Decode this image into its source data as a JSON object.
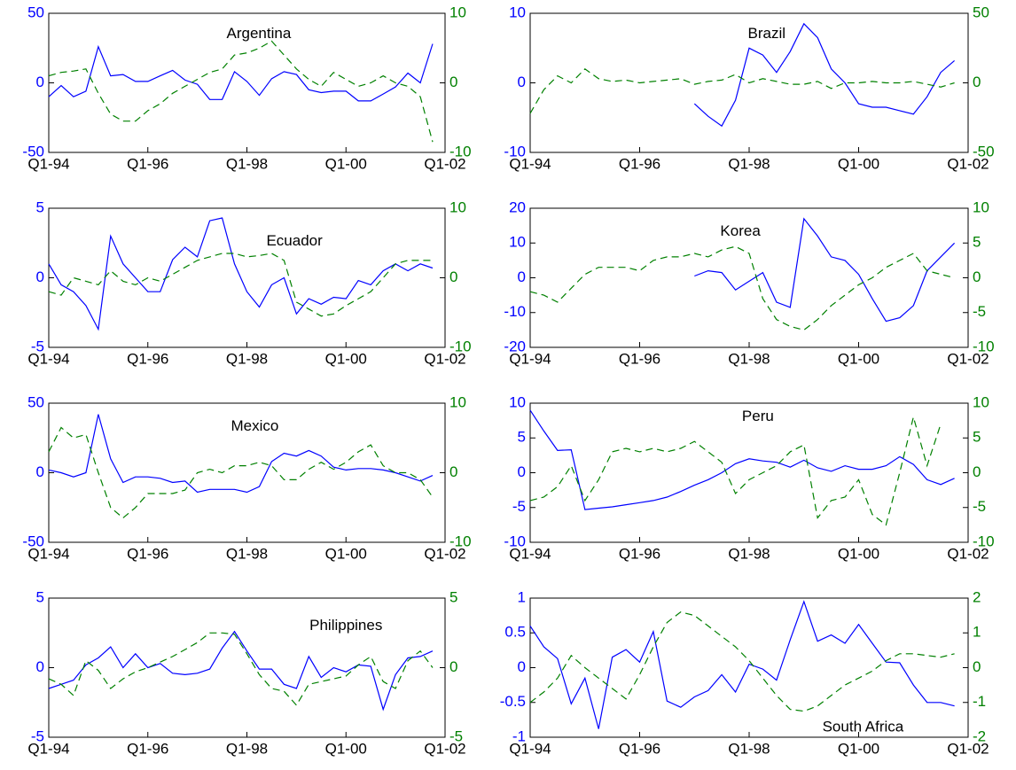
{
  "chart_data": [
    {
      "type": "line",
      "title": "Argentina",
      "categories": [
        "Q1-94",
        null,
        null,
        null,
        null,
        null,
        null,
        null,
        "Q1-96",
        null,
        null,
        null,
        null,
        null,
        null,
        null,
        "Q1-98",
        null,
        null,
        null,
        null,
        null,
        null,
        null,
        "Q1-00",
        null,
        null,
        null,
        null,
        null,
        null,
        null,
        "Q1-02"
      ],
      "ylim": [
        -50,
        50
      ],
      "yticks": [
        -50,
        0,
        50
      ],
      "y2lim": [
        -10,
        10
      ],
      "y2ticks": [
        -10,
        0,
        10
      ],
      "series": [
        {
          "color": "#0000ff",
          "style": "solid",
          "values": [
            -10,
            -2,
            -10,
            -6,
            26,
            5,
            6,
            1,
            1,
            5,
            9,
            2,
            -1,
            -12,
            -12,
            8,
            1,
            -9,
            3,
            8,
            6,
            -5,
            -7,
            -6,
            -6,
            -13,
            -13,
            -8,
            -3,
            7,
            0,
            28,
            null
          ]
        },
        {
          "color": "#008000",
          "style": "dashed",
          "axis": "y2",
          "values": [
            1,
            1.5,
            1.7,
            2,
            -1.5,
            -4.5,
            -5.5,
            -5.5,
            -4,
            -3,
            -1.5,
            -0.5,
            0.5,
            1.5,
            2,
            4,
            4.3,
            5,
            6,
            4,
            2,
            0.5,
            -0.5,
            1.5,
            0.5,
            -0.5,
            0,
            1,
            0,
            -0.5,
            -2,
            -8.5,
            null
          ]
        }
      ]
    },
    {
      "type": "line",
      "title": "Brazil",
      "categories": [
        "Q1-94",
        null,
        null,
        null,
        null,
        null,
        null,
        null,
        "Q1-96",
        null,
        null,
        null,
        null,
        null,
        null,
        null,
        "Q1-98",
        null,
        null,
        null,
        null,
        null,
        null,
        null,
        "Q1-00",
        null,
        null,
        null,
        null,
        null,
        null,
        null,
        "Q1-02"
      ],
      "ylim": [
        -10,
        10
      ],
      "yticks": [
        -10,
        0,
        10
      ],
      "y2lim": [
        -50,
        50
      ],
      "y2ticks": [
        -50,
        0,
        50
      ],
      "series": [
        {
          "color": "#0000ff",
          "style": "solid",
          "values": [
            null,
            null,
            null,
            null,
            null,
            null,
            null,
            null,
            null,
            null,
            null,
            null,
            -3,
            -4.8,
            -6.2,
            -2.5,
            5,
            4,
            1.5,
            4.5,
            8.5,
            6.5,
            2,
            0,
            -3,
            -3.5,
            -3.5,
            -4,
            -4.5,
            -2,
            1.5,
            3.2,
            null
          ]
        },
        {
          "color": "#008000",
          "style": "dashed",
          "axis": "y2",
          "values": [
            -22,
            -5,
            5,
            0,
            10,
            3,
            1,
            2,
            0,
            1,
            2,
            3,
            -1,
            1,
            2,
            6,
            0,
            3,
            1,
            -1,
            -1,
            1,
            -4,
            0,
            0,
            1,
            0,
            0,
            1,
            -1,
            -3,
            0,
            null
          ]
        }
      ]
    },
    {
      "type": "line",
      "title": "Ecuador",
      "categories": [
        "Q1-94",
        null,
        null,
        null,
        null,
        null,
        null,
        null,
        "Q1-96",
        null,
        null,
        null,
        null,
        null,
        null,
        null,
        "Q1-98",
        null,
        null,
        null,
        null,
        null,
        null,
        null,
        "Q1-00",
        null,
        null,
        null,
        null,
        null,
        null,
        null,
        "Q1-02"
      ],
      "ylim": [
        -5,
        5
      ],
      "yticks": [
        -5,
        0,
        5
      ],
      "y2lim": [
        -10,
        10
      ],
      "y2ticks": [
        -10,
        0,
        10
      ],
      "series": [
        {
          "color": "#0000ff",
          "style": "solid",
          "values": [
            1,
            -0.5,
            -1,
            -2,
            -3.7,
            3,
            1,
            0,
            -1,
            -1,
            1.3,
            2.2,
            1.5,
            4.1,
            4.3,
            1,
            -1,
            -2.1,
            -0.5,
            0,
            -2.6,
            -1.5,
            -1.9,
            -1.4,
            -1.5,
            -0.2,
            -0.5,
            0.5,
            1,
            0.5,
            1,
            0.7,
            null
          ]
        },
        {
          "color": "#008000",
          "style": "dashed",
          "axis": "y2",
          "values": [
            -2,
            -2.5,
            0,
            -0.5,
            -1,
            1,
            -0.5,
            -1,
            0,
            -0.5,
            0.5,
            1.5,
            2.5,
            3,
            3.5,
            3.5,
            3,
            3.2,
            3.5,
            2.5,
            -3.5,
            -4.5,
            -5.5,
            -5.2,
            -4,
            -3,
            -2,
            0,
            2,
            2.5,
            2.5,
            2.5,
            null
          ]
        }
      ]
    },
    {
      "type": "line",
      "title": "Korea",
      "categories": [
        "Q1-94",
        null,
        null,
        null,
        null,
        null,
        null,
        null,
        "Q1-96",
        null,
        null,
        null,
        null,
        null,
        null,
        null,
        "Q1-98",
        null,
        null,
        null,
        null,
        null,
        null,
        null,
        "Q1-00",
        null,
        null,
        null,
        null,
        null,
        null,
        null,
        "Q1-02"
      ],
      "ylim": [
        -20,
        20
      ],
      "yticks": [
        -20,
        -10,
        0,
        10,
        20
      ],
      "y2lim": [
        -10,
        10
      ],
      "y2ticks": [
        -10,
        -5,
        0,
        5,
        10
      ],
      "series": [
        {
          "color": "#0000ff",
          "style": "solid",
          "values": [
            null,
            null,
            null,
            null,
            null,
            null,
            null,
            null,
            null,
            null,
            null,
            null,
            0.5,
            2,
            1.5,
            -3.5,
            -1,
            1.5,
            -7,
            -8.5,
            17,
            12,
            6,
            5,
            1,
            -6,
            -12.5,
            -11.5,
            -8,
            2,
            6,
            10,
            null
          ]
        },
        {
          "color": "#008000",
          "style": "dashed",
          "axis": "y2",
          "values": [
            -2,
            -2.5,
            -3.5,
            -1.5,
            0.5,
            1.5,
            1.5,
            1.5,
            1,
            2.5,
            3,
            3,
            3.5,
            3,
            4,
            4.5,
            3.5,
            -3,
            -6,
            -7,
            -7.5,
            -6,
            -4,
            -2.5,
            -1,
            0,
            1.5,
            2.5,
            3.5,
            1,
            0.5,
            0,
            null
          ]
        }
      ]
    },
    {
      "type": "line",
      "title": "Mexico",
      "categories": [
        "Q1-94",
        null,
        null,
        null,
        null,
        null,
        null,
        null,
        "Q1-96",
        null,
        null,
        null,
        null,
        null,
        null,
        null,
        "Q1-98",
        null,
        null,
        null,
        null,
        null,
        null,
        null,
        "Q1-00",
        null,
        null,
        null,
        null,
        null,
        null,
        null,
        "Q1-02"
      ],
      "ylim": [
        -50,
        50
      ],
      "yticks": [
        -50,
        0,
        50
      ],
      "y2lim": [
        -10,
        10
      ],
      "y2ticks": [
        -10,
        0,
        10
      ],
      "series": [
        {
          "color": "#0000ff",
          "style": "solid",
          "values": [
            2,
            0,
            -3,
            0,
            42,
            10,
            -7,
            -3,
            -3,
            -4,
            -7,
            -6,
            -14,
            -12,
            -12,
            -12,
            -14,
            -10,
            8,
            14,
            12,
            16,
            12,
            4,
            2,
            3,
            3,
            2,
            0,
            -3,
            -6,
            -2,
            null
          ]
        },
        {
          "color": "#008000",
          "style": "dashed",
          "axis": "y2",
          "values": [
            3,
            6.5,
            5,
            5.5,
            0,
            -5,
            -6.5,
            -5,
            -3,
            -3,
            -3,
            -2.5,
            0,
            0.5,
            0,
            1,
            1,
            1.5,
            1,
            -1,
            -1,
            0.5,
            1.5,
            0.5,
            1.5,
            3,
            4,
            1,
            0,
            0,
            -1,
            -3.5,
            null
          ]
        }
      ]
    },
    {
      "type": "line",
      "title": "Peru",
      "categories": [
        "Q1-94",
        null,
        null,
        null,
        null,
        null,
        null,
        null,
        "Q1-96",
        null,
        null,
        null,
        null,
        null,
        null,
        null,
        "Q1-98",
        null,
        null,
        null,
        null,
        null,
        null,
        null,
        "Q1-00",
        null,
        null,
        null,
        null,
        null,
        null,
        null,
        "Q1-02"
      ],
      "ylim": [
        -10,
        10
      ],
      "yticks": [
        -10,
        -5,
        0,
        5,
        10
      ],
      "y2lim": [
        -10,
        10
      ],
      "y2ticks": [
        -10,
        -5,
        0,
        5,
        10
      ],
      "series": [
        {
          "color": "#0000ff",
          "style": "solid",
          "values": [
            9,
            6,
            3.2,
            3.3,
            -5.3,
            -5.1,
            -4.9,
            -4.6,
            -4.3,
            -4,
            -3.5,
            -2.7,
            -1.8,
            -1,
            0,
            1.3,
            2,
            1.7,
            1.5,
            0.8,
            1.8,
            0.7,
            0.2,
            1,
            0.5,
            0.5,
            1,
            2.3,
            1.2,
            -1,
            -1.7,
            -0.8,
            null
          ]
        },
        {
          "color": "#008000",
          "style": "dashed",
          "axis": "y2",
          "values": [
            -4,
            -3.5,
            -2,
            1,
            -4,
            -1,
            3,
            3.5,
            3,
            3.5,
            3,
            3.5,
            4.5,
            3,
            1.5,
            -3,
            -1,
            0,
            1,
            3,
            4,
            -6.5,
            -4,
            -3.5,
            -1,
            -6,
            -7.5,
            0,
            8,
            1,
            7,
            null,
            null
          ]
        }
      ]
    },
    {
      "type": "line",
      "title": "Philippines",
      "categories": [
        "Q1-94",
        null,
        null,
        null,
        null,
        null,
        null,
        null,
        "Q1-96",
        null,
        null,
        null,
        null,
        null,
        null,
        null,
        "Q1-98",
        null,
        null,
        null,
        null,
        null,
        null,
        null,
        "Q1-00",
        null,
        null,
        null,
        null,
        null,
        null,
        null,
        "Q1-02"
      ],
      "ylim": [
        -5,
        5
      ],
      "yticks": [
        -5,
        0,
        5
      ],
      "y2lim": [
        -5,
        5
      ],
      "y2ticks": [
        -5,
        0,
        5
      ],
      "series": [
        {
          "color": "#0000ff",
          "style": "solid",
          "values": [
            -1.5,
            -1.2,
            -0.9,
            0.2,
            0.7,
            1.5,
            0,
            1,
            0,
            0.3,
            -0.4,
            -0.5,
            -0.4,
            -0.1,
            1.4,
            2.6,
            1.2,
            -0.1,
            -0.1,
            -1.2,
            -1.5,
            0.8,
            -0.7,
            0,
            -0.3,
            0.2,
            0.1,
            -3,
            -0.5,
            0.7,
            0.8,
            1.2,
            null
          ]
        },
        {
          "color": "#008000",
          "style": "dashed",
          "axis": "y2",
          "values": [
            -0.8,
            -1.2,
            -2,
            0.5,
            -0.2,
            -1.5,
            -0.8,
            -0.3,
            0,
            0.4,
            0.8,
            1.3,
            1.8,
            2.5,
            2.5,
            2.4,
            1,
            -0.5,
            -1.5,
            -1.7,
            -2.7,
            -1.2,
            -1,
            -0.8,
            -0.6,
            0.2,
            0.8,
            -1,
            -1.5,
            0.5,
            1.2,
            0,
            null
          ]
        }
      ]
    },
    {
      "type": "line",
      "title": "South Africa",
      "categories": [
        "Q1-94",
        null,
        null,
        null,
        null,
        null,
        null,
        null,
        "Q1-96",
        null,
        null,
        null,
        null,
        null,
        null,
        null,
        "Q1-98",
        null,
        null,
        null,
        null,
        null,
        null,
        null,
        "Q1-00",
        null,
        null,
        null,
        null,
        null,
        null,
        null,
        "Q1-02"
      ],
      "ylim": [
        -1,
        1
      ],
      "yticks": [
        -1,
        -0.5,
        0,
        0.5,
        1
      ],
      "y2lim": [
        -2,
        2
      ],
      "y2ticks": [
        -2,
        -1,
        0,
        1,
        2
      ],
      "series": [
        {
          "color": "#0000ff",
          "style": "solid",
          "values": [
            0.6,
            0.3,
            0.13,
            -0.52,
            -0.15,
            -0.88,
            0.15,
            0.26,
            0.08,
            0.52,
            -0.48,
            -0.57,
            -0.42,
            -0.33,
            -0.1,
            -0.35,
            0.05,
            -0.02,
            -0.18,
            0.4,
            0.95,
            0.38,
            0.47,
            0.35,
            0.62,
            0.35,
            0.08,
            0.07,
            -0.25,
            -0.5,
            -0.5,
            -0.55,
            null
          ]
        },
        {
          "color": "#008000",
          "style": "dashed",
          "axis": "y2",
          "values": [
            -1,
            -0.7,
            -0.3,
            0.35,
            0,
            -0.3,
            -0.6,
            -0.9,
            -0.2,
            0.6,
            1.3,
            1.6,
            1.5,
            1.2,
            0.9,
            0.6,
            0.2,
            -0.3,
            -0.8,
            -1.2,
            -1.25,
            -1.1,
            -0.8,
            -0.5,
            -0.3,
            -0.1,
            0.2,
            0.4,
            0.4,
            0.35,
            0.3,
            0.4,
            null
          ]
        }
      ]
    }
  ]
}
